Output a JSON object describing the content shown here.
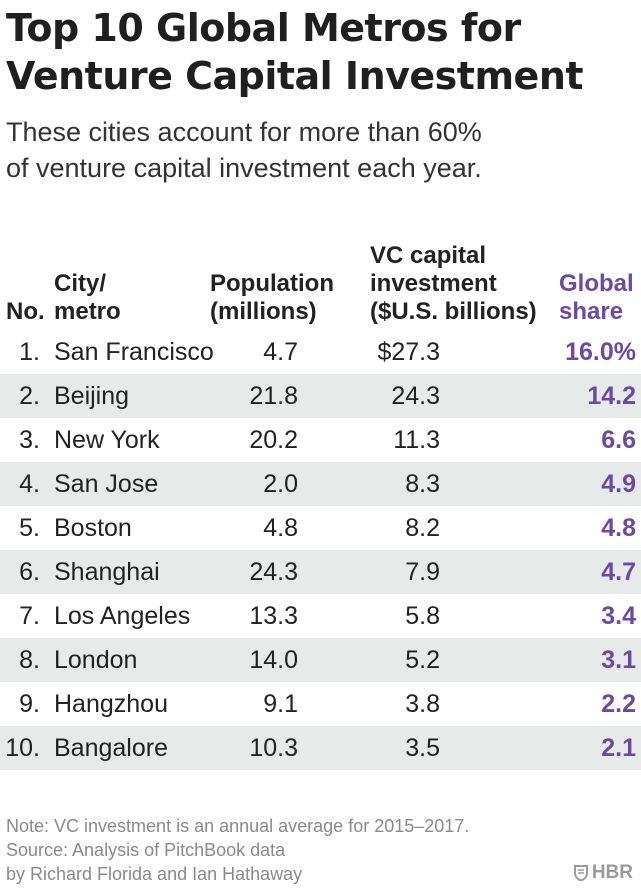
{
  "title_lines": [
    "Top 10 Global Metros for",
    "Venture Capital Investment"
  ],
  "subtitle_lines": [
    "These cities account for more than 60%",
    "of venture capital investment each year."
  ],
  "chart_data": {
    "type": "table",
    "title": "Top 10 Global Metros for Venture Capital Investment",
    "subtitle": "These cities account for more than 60% of venture capital investment each year.",
    "headers": {
      "no": [
        "No."
      ],
      "city": [
        "City/",
        "metro"
      ],
      "population": [
        "Population",
        "(millions)"
      ],
      "vc": [
        "VC capital",
        "investment",
        "($U.S. billions)"
      ],
      "share": [
        "Global",
        "share"
      ]
    },
    "rows": [
      {
        "no": "1.",
        "city": "San Francisco",
        "population": "4.7",
        "vc": "$27.3",
        "share": "16.0%"
      },
      {
        "no": "2.",
        "city": "Beijing",
        "population": "21.8",
        "vc": "24.3",
        "share": "14.2"
      },
      {
        "no": "3.",
        "city": "New York",
        "population": "20.2",
        "vc": "11.3",
        "share": "6.6"
      },
      {
        "no": "4.",
        "city": "San Jose",
        "population": "2.0",
        "vc": "8.3",
        "share": "4.9"
      },
      {
        "no": "5.",
        "city": "Boston",
        "population": "4.8",
        "vc": "8.2",
        "share": "4.8"
      },
      {
        "no": "6.",
        "city": "Shanghai",
        "population": "24.3",
        "vc": "7.9",
        "share": "4.7"
      },
      {
        "no": "7.",
        "city": "Los Angeles",
        "population": "13.3",
        "vc": "5.8",
        "share": "3.4"
      },
      {
        "no": "8.",
        "city": "London",
        "population": "14.0",
        "vc": "5.2",
        "share": "3.1"
      },
      {
        "no": "9.",
        "city": "Hangzhou",
        "population": "9.1",
        "vc": "3.8",
        "share": "2.2"
      },
      {
        "no": "10.",
        "city": "Bangalore",
        "population": "10.3",
        "vc": "3.5",
        "share": "2.1"
      }
    ]
  },
  "footer_lines": [
    "Note: VC investment is an annual average for 2015–2017.",
    "Source: Analysis of PitchBook data",
    "by Richard Florida and Ian Hathaway"
  ],
  "logo": "HBR",
  "colors": {
    "accent": "#6b4aa6",
    "shade": "#e8eaea",
    "text": "#1f1f1f",
    "muted": "#8a8a8a"
  }
}
